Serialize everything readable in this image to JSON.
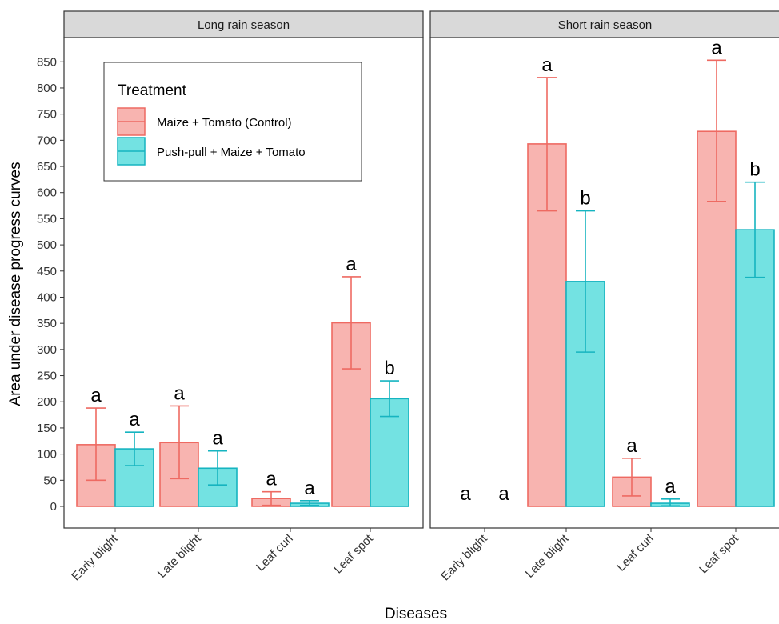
{
  "chart_data": {
    "type": "bar",
    "xlabel": "Diseases",
    "ylabel": "Area under disease progress curves",
    "ylim": [
      0,
      850
    ],
    "y_ticks": [
      0,
      50,
      100,
      150,
      200,
      250,
      300,
      350,
      400,
      450,
      500,
      550,
      600,
      650,
      700,
      750,
      800,
      850
    ],
    "categories": [
      "Early blight",
      "Late blight",
      "Leaf curl",
      "Leaf spot"
    ],
    "legend": {
      "title": "Treatment",
      "placement": "top-left inside first panel",
      "items": [
        {
          "label": "Maize + Tomato (Control)",
          "fill": "#F8B4B0",
          "stroke": "#EE6A62"
        },
        {
          "label": "Push-pull + Maize + Tomato",
          "fill": "#73E2E2",
          "stroke": "#16B4C0"
        }
      ]
    },
    "panels": [
      {
        "title": "Long  rain season",
        "series": [
          {
            "name": "Maize + Tomato (Control)",
            "values": [
              118,
              122,
              15,
              351
            ],
            "err_low": [
              50,
              53,
              2,
              263
            ],
            "err_high": [
              188,
              192,
              28,
              439
            ],
            "letters": [
              "a",
              "a",
              "a",
              "a"
            ]
          },
          {
            "name": "Push-pull + Maize + Tomato",
            "values": [
              110,
              73,
              6,
              206
            ],
            "err_low": [
              78,
              41,
              2,
              172
            ],
            "err_high": [
              142,
              106,
              11,
              240
            ],
            "letters": [
              "a",
              "a",
              "a",
              "b"
            ]
          }
        ]
      },
      {
        "title": "Short  rain season",
        "series": [
          {
            "name": "Maize + Tomato (Control)",
            "values": [
              0,
              693,
              56,
              717
            ],
            "err_low": [
              0,
              565,
              20,
              583
            ],
            "err_high": [
              0,
              820,
              92,
              853
            ],
            "letters": [
              "a",
              "a",
              "a",
              "a"
            ]
          },
          {
            "name": "Push-pull + Maize + Tomato",
            "values": [
              0,
              430,
              6,
              529
            ],
            "err_low": [
              0,
              295,
              1,
              438
            ],
            "err_high": [
              0,
              565,
              14,
              620
            ],
            "letters": [
              "a",
              "b",
              "a",
              "b"
            ]
          }
        ]
      }
    ],
    "grid": false
  }
}
